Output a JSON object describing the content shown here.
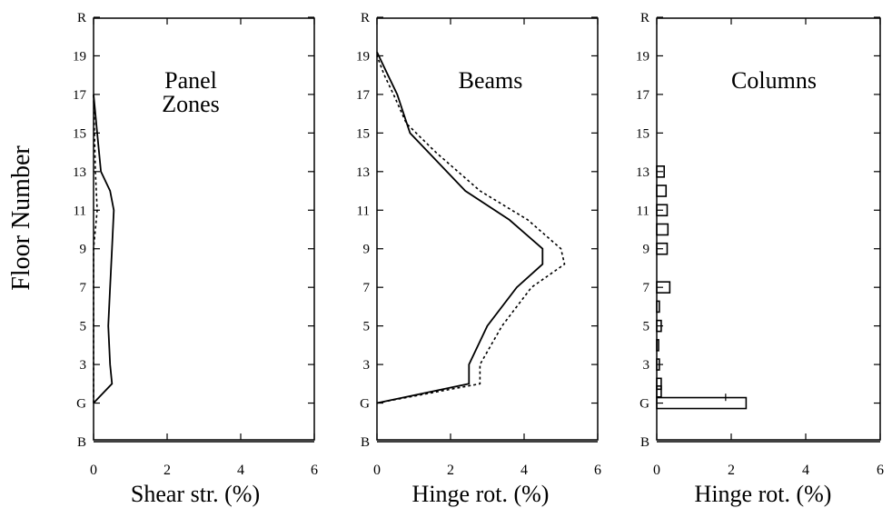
{
  "figure": {
    "ylabel": "Floor Number"
  },
  "chart_data": [
    {
      "type": "line",
      "title": "Panel Zones",
      "title_lines": [
        "Panel",
        "Zones"
      ],
      "xlabel": "Shear str. (%)",
      "xlim": [
        0,
        6
      ],
      "xticks": [
        "0",
        "2",
        "4",
        "6"
      ],
      "ylim": [
        -1,
        21
      ],
      "yticks": [
        {
          "label": "B",
          "floor": -1
        },
        {
          "label": "G",
          "floor": 1
        },
        {
          "label": "3",
          "floor": 3
        },
        {
          "label": "5",
          "floor": 5
        },
        {
          "label": "7",
          "floor": 7
        },
        {
          "label": "9",
          "floor": 9
        },
        {
          "label": "11",
          "floor": 11
        },
        {
          "label": "13",
          "floor": 13
        },
        {
          "label": "15",
          "floor": 15
        },
        {
          "label": "17",
          "floor": 17
        },
        {
          "label": "19",
          "floor": 19
        },
        {
          "label": "R",
          "floor": 21
        }
      ],
      "series": [
        {
          "style": "solid",
          "x": [
            0,
            0.5,
            0.45,
            0.4,
            0.45,
            0.5,
            0.55,
            0.45,
            0.2,
            0.1,
            0
          ],
          "y": [
            1,
            2,
            3,
            5,
            7,
            9,
            11,
            12,
            13,
            15,
            17
          ]
        },
        {
          "style": "dotted",
          "x": [
            0,
            0,
            0,
            0,
            0,
            0.05,
            0.1,
            0.05,
            0
          ],
          "y": [
            1,
            3,
            5,
            7,
            9,
            10,
            11,
            13,
            17
          ]
        }
      ]
    },
    {
      "type": "line",
      "title": "Beams",
      "title_lines": [
        "Beams"
      ],
      "xlabel": "Hinge rot. (%)",
      "xlim": [
        0,
        6
      ],
      "xticks": [
        "0",
        "2",
        "4",
        "6"
      ],
      "ylim": [
        -1,
        21
      ],
      "yticks": [
        {
          "label": "B",
          "floor": -1
        },
        {
          "label": "G",
          "floor": 1
        },
        {
          "label": "3",
          "floor": 3
        },
        {
          "label": "5",
          "floor": 5
        },
        {
          "label": "7",
          "floor": 7
        },
        {
          "label": "9",
          "floor": 9
        },
        {
          "label": "11",
          "floor": 11
        },
        {
          "label": "13",
          "floor": 13
        },
        {
          "label": "15",
          "floor": 15
        },
        {
          "label": "17",
          "floor": 17
        },
        {
          "label": "19",
          "floor": 19
        },
        {
          "label": "R",
          "floor": 21
        }
      ],
      "series": [
        {
          "style": "solid",
          "x": [
            0,
            2.5,
            2.5,
            3.0,
            3.8,
            4.5,
            4.5,
            3.6,
            2.4,
            1.4,
            0.9,
            0.55,
            0.3,
            0
          ],
          "y": [
            1,
            2,
            3,
            5,
            7,
            8.2,
            9,
            10.5,
            12,
            14,
            15,
            17,
            18,
            19.2
          ]
        },
        {
          "style": "dotted",
          "x": [
            0,
            2.8,
            2.8,
            3.4,
            4.2,
            5.1,
            5.0,
            4.1,
            2.8,
            1.6,
            0.8,
            0.45,
            0.2,
            0
          ],
          "y": [
            1,
            2,
            3,
            5,
            7,
            8.2,
            9,
            10.5,
            12,
            14,
            15.5,
            17,
            18,
            19
          ]
        }
      ]
    },
    {
      "type": "bar",
      "title": "Columns",
      "title_lines": [
        "Columns"
      ],
      "xlabel": "Hinge rot. (%)",
      "xlim": [
        0,
        6
      ],
      "xticks": [
        "0",
        "2",
        "4",
        "6"
      ],
      "ylim": [
        -1,
        21
      ],
      "yticks": [
        {
          "label": "B",
          "floor": -1
        },
        {
          "label": "G",
          "floor": 1
        },
        {
          "label": "3",
          "floor": 3
        },
        {
          "label": "5",
          "floor": 5
        },
        {
          "label": "7",
          "floor": 7
        },
        {
          "label": "9",
          "floor": 9
        },
        {
          "label": "11",
          "floor": 11
        },
        {
          "label": "13",
          "floor": 13
        },
        {
          "label": "15",
          "floor": 15
        },
        {
          "label": "17",
          "floor": 17
        },
        {
          "label": "19",
          "floor": 19
        },
        {
          "label": "R",
          "floor": 21
        }
      ],
      "bars": [
        {
          "floor": 1,
          "value": 2.4
        },
        {
          "floor": 1.6,
          "value": 0.12
        },
        {
          "floor": 2,
          "value": 0.12
        },
        {
          "floor": 3,
          "value": 0.07
        },
        {
          "floor": 4,
          "value": 0.05
        },
        {
          "floor": 5,
          "value": 0.12
        },
        {
          "floor": 6,
          "value": 0.07
        },
        {
          "floor": 7,
          "value": 0.35
        },
        {
          "floor": 9,
          "value": 0.28
        },
        {
          "floor": 10,
          "value": 0.3
        },
        {
          "floor": 11,
          "value": 0.28
        },
        {
          "floor": 12,
          "value": 0.25
        },
        {
          "floor": 13,
          "value": 0.2
        }
      ],
      "markers": [
        {
          "x": 1.85,
          "floor": 1.3
        }
      ]
    }
  ]
}
